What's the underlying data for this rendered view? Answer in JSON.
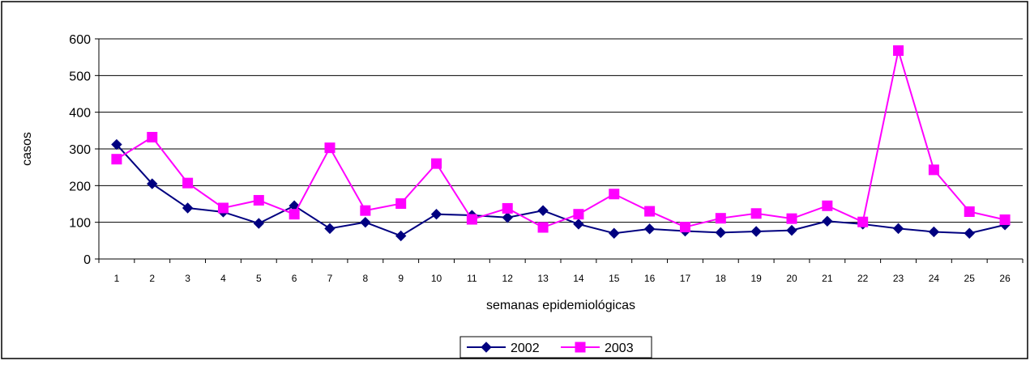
{
  "chart_data": {
    "type": "line",
    "title": "",
    "xlabel": "semanas epidemiológicas",
    "ylabel": "casos",
    "ylim": [
      0,
      600
    ],
    "yticks": [
      0,
      100,
      200,
      300,
      400,
      500,
      600
    ],
    "grid": "horizontal",
    "legend_position": "bottom",
    "categories": [
      "1",
      "2",
      "3",
      "4",
      "5",
      "6",
      "7",
      "8",
      "9",
      "10",
      "11",
      "12",
      "13",
      "14",
      "15",
      "16",
      "17",
      "18",
      "19",
      "20",
      "21",
      "22",
      "23",
      "24",
      "25",
      "26"
    ],
    "series": [
      {
        "name": "2002",
        "color": "#000080",
        "marker": "diamond",
        "values": [
          312,
          205,
          139,
          128,
          97,
          145,
          83,
          100,
          63,
          122,
          119,
          113,
          132,
          95,
          70,
          82,
          76,
          72,
          75,
          78,
          103,
          95,
          83,
          74,
          70,
          93
        ]
      },
      {
        "name": "2003",
        "color": "#FF00FF",
        "marker": "square",
        "values": [
          272,
          332,
          207,
          139,
          160,
          122,
          303,
          132,
          151,
          260,
          108,
          138,
          86,
          122,
          177,
          130,
          87,
          111,
          124,
          110,
          145,
          101,
          568,
          243,
          129,
          107
        ]
      }
    ]
  }
}
